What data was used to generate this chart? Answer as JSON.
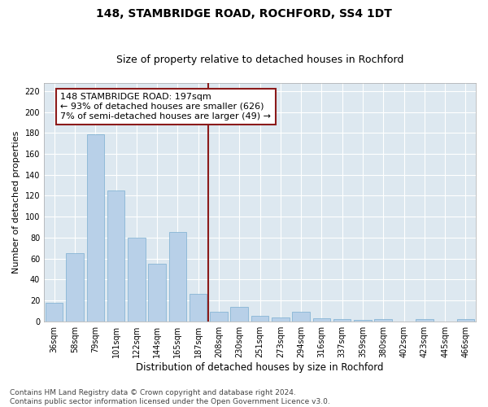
{
  "title": "148, STAMBRIDGE ROAD, ROCHFORD, SS4 1DT",
  "subtitle": "Size of property relative to detached houses in Rochford",
  "xlabel": "Distribution of detached houses by size in Rochford",
  "ylabel": "Number of detached properties",
  "categories": [
    "36sqm",
    "58sqm",
    "79sqm",
    "101sqm",
    "122sqm",
    "144sqm",
    "165sqm",
    "187sqm",
    "208sqm",
    "230sqm",
    "251sqm",
    "273sqm",
    "294sqm",
    "316sqm",
    "337sqm",
    "359sqm",
    "380sqm",
    "402sqm",
    "423sqm",
    "445sqm",
    "466sqm"
  ],
  "values": [
    18,
    65,
    179,
    125,
    80,
    55,
    85,
    26,
    9,
    14,
    5,
    4,
    9,
    3,
    2,
    1,
    2,
    0,
    2,
    0,
    2
  ],
  "bar_color": "#b8d0e8",
  "bar_edgecolor": "#7aaed0",
  "background_color": "#dde8f0",
  "grid_color": "#ffffff",
  "vline_x": 7.5,
  "vline_color": "#8b1a1a",
  "annotation_line1": "148 STAMBRIDGE ROAD: 197sqm",
  "annotation_line2": "← 93% of detached houses are smaller (626)",
  "annotation_line3": "7% of semi-detached houses are larger (49) →",
  "annotation_box_color": "#8b1a1a",
  "ylim": [
    0,
    228
  ],
  "yticks": [
    0,
    20,
    40,
    60,
    80,
    100,
    120,
    140,
    160,
    180,
    200,
    220
  ],
  "footer_text": "Contains HM Land Registry data © Crown copyright and database right 2024.\nContains public sector information licensed under the Open Government Licence v3.0.",
  "title_fontsize": 10,
  "subtitle_fontsize": 9,
  "xlabel_fontsize": 8.5,
  "ylabel_fontsize": 8,
  "tick_fontsize": 7,
  "annotation_fontsize": 8,
  "footer_fontsize": 6.5
}
